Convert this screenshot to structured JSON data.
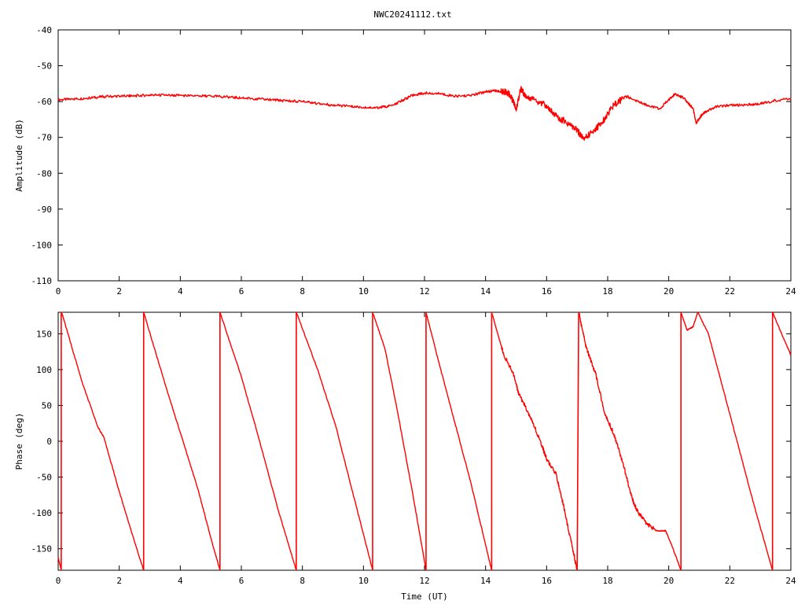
{
  "title": "NWC20241112.txt",
  "colors": {
    "series": "#ff0000",
    "axes": "#000000",
    "background": "#ffffff"
  },
  "chart_data": [
    {
      "type": "line",
      "title": "NWC20241112.txt",
      "xlabel": "",
      "ylabel": "Amplitude (dB)",
      "xlim": [
        0,
        24
      ],
      "ylim": [
        -110,
        -40
      ],
      "xticks": [
        0,
        2,
        4,
        6,
        8,
        10,
        12,
        14,
        16,
        18,
        20,
        22,
        24
      ],
      "yticks": [
        -110,
        -100,
        -90,
        -80,
        -70,
        -60,
        -50,
        -40
      ],
      "xtick_labels": [
        "0",
        "2",
        "4",
        "6",
        "8",
        "10",
        "12",
        "14",
        "16",
        "18",
        "20",
        "22",
        "24"
      ],
      "ytick_labels": [
        "-110",
        "-100",
        "-90",
        "-80",
        "-70",
        "-60",
        "-50",
        "-40"
      ],
      "grid": false,
      "series": [
        {
          "x": [
            0,
            0.5,
            1,
            1.5,
            2,
            2.5,
            3,
            3.5,
            4,
            4.5,
            5,
            5.5,
            6,
            6.5,
            7,
            7.5,
            8,
            8.5,
            9,
            9.5,
            10,
            10.5,
            11,
            11.3,
            11.6,
            12,
            12.5,
            13,
            13.5,
            14,
            14.3,
            14.6,
            14.8,
            15.0,
            15.15,
            15.3,
            15.6,
            16.0,
            16.3,
            16.6,
            17.0,
            17.2,
            17.5,
            17.8,
            18.2,
            18.6,
            19.0,
            19.3,
            19.7,
            20.0,
            20.2,
            20.5,
            20.8,
            20.9,
            21.1,
            21.5,
            22,
            22.5,
            23,
            23.5,
            24
          ],
          "y": [
            -59.5,
            -59.3,
            -59,
            -58.6,
            -58.5,
            -58.4,
            -58.2,
            -58.2,
            -58.3,
            -58.4,
            -58.5,
            -58.7,
            -59,
            -59.2,
            -59.5,
            -59.8,
            -60,
            -60.5,
            -61,
            -61.3,
            -61.6,
            -61.7,
            -61,
            -59.5,
            -58.3,
            -57.6,
            -57.8,
            -58.5,
            -58.3,
            -57.3,
            -57,
            -57.2,
            -58,
            -62,
            -56.5,
            -58.5,
            -59.5,
            -61,
            -64,
            -65.5,
            -68,
            -70.5,
            -68.5,
            -66,
            -61,
            -58.5,
            -60,
            -61,
            -62,
            -59.5,
            -58,
            -59,
            -62,
            -66,
            -63.5,
            -61.5,
            -61,
            -61,
            -60.6,
            -59.7,
            -59.2
          ]
        }
      ]
    },
    {
      "type": "line",
      "title": "",
      "xlabel": "Time (UT)",
      "ylabel": "Phase (deg)",
      "xlim": [
        0,
        24
      ],
      "ylim": [
        -180,
        180
      ],
      "xticks": [
        0,
        2,
        4,
        6,
        8,
        10,
        12,
        14,
        16,
        18,
        20,
        22,
        24
      ],
      "yticks": [
        -150,
        -100,
        -50,
        0,
        50,
        100,
        150
      ],
      "xtick_labels": [
        "0",
        "2",
        "4",
        "6",
        "8",
        "10",
        "12",
        "14",
        "16",
        "18",
        "20",
        "22",
        "24"
      ],
      "ytick_labels": [
        "-150",
        "-100",
        "-50",
        "0",
        "50",
        "100",
        "150"
      ],
      "grid": false,
      "series": [
        {
          "segments": [
            {
              "x": [
                0,
                0.1
              ],
              "y": [
                -162,
                -180
              ]
            },
            {
              "x": [
                0.1,
                0.15,
                0.8,
                1.3,
                1.5,
                2.0,
                2.5,
                2.8
              ],
              "y": [
                180,
                175,
                80,
                20,
                5,
                -70,
                -140,
                -180
              ]
            },
            {
              "x": [
                2.8,
                3.5,
                4.2,
                4.6,
                5.0,
                5.3
              ],
              "y": [
                180,
                80,
                -15,
                -70,
                -135,
                -180
              ]
            },
            {
              "x": [
                5.3,
                6.0,
                6.6,
                7.2,
                7.8
              ],
              "y": [
                180,
                90,
                0,
                -95,
                -180
              ]
            },
            {
              "x": [
                7.8,
                8.5,
                9.1,
                9.7,
                10.3
              ],
              "y": [
                180,
                100,
                20,
                -80,
                -180
              ]
            },
            {
              "x": [
                10.3,
                10.7,
                11.1,
                11.6,
                12.05
              ],
              "y": [
                180,
                130,
                45,
                -70,
                -180
              ]
            },
            {
              "x": [
                12.05,
                12.5,
                13.0,
                13.5,
                14.2
              ],
              "y": [
                180,
                105,
                25,
                -55,
                -180
              ]
            },
            {
              "x": [
                14.2,
                14.6,
                14.9,
                15.1,
                15.4,
                15.8,
                16.0,
                16.3,
                16.5,
                16.8,
                17.0
              ],
              "y": [
                180,
                120,
                95,
                65,
                40,
                0,
                -25,
                -45,
                -80,
                -140,
                -180
              ]
            },
            {
              "x": [
                17.05,
                17.3,
                17.6,
                17.9,
                18.2,
                18.5,
                18.8,
                19.0,
                19.3,
                19.6,
                19.9,
                20.1,
                20.4
              ],
              "y": [
                180,
                130,
                95,
                40,
                10,
                -30,
                -80,
                -100,
                -115,
                -125,
                -125,
                -145,
                -180
              ]
            },
            {
              "x": [
                20.4,
                20.6,
                20.8,
                20.95
              ],
              "y": [
                180,
                155,
                160,
                180
              ]
            },
            {
              "x": [
                20.95,
                21.3,
                21.8,
                22.3,
                22.8,
                23.4
              ],
              "y": [
                180,
                150,
                70,
                -10,
                -90,
                -180
              ]
            },
            {
              "x": [
                23.4,
                23.7,
                24
              ],
              "y": [
                180,
                150,
                120
              ]
            }
          ]
        }
      ]
    }
  ]
}
